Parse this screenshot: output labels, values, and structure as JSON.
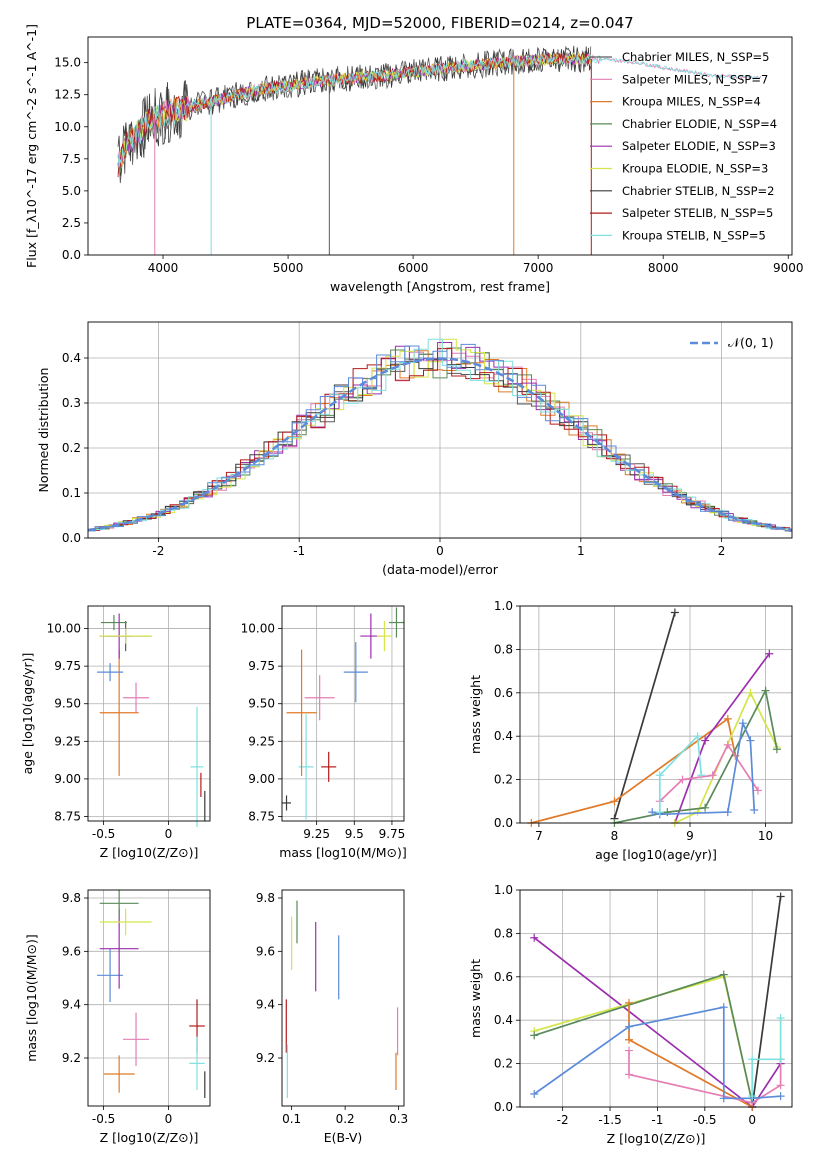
{
  "figure_title": "PLATE=0364, MJD=52000, FIBERID=0214, z=0.047",
  "colors": {
    "series": [
      "#5b5b5b",
      "#e37fb4",
      "#e07a28",
      "#5a8a5a",
      "#9b2fae",
      "#d4e64a",
      "#3a3a3a",
      "#b31b1b",
      "#7fe0e0"
    ],
    "gauss": "#5b8bd9",
    "extra_blue": "#5b8bd9"
  },
  "chart_data": [
    {
      "id": "spectrum",
      "type": "line",
      "xlabel": "wavelength [Angstrom, rest frame]",
      "ylabel": "Flux [f_λ10^-17 erg cm^-2 s^-1 A^-1]",
      "xlim": [
        3400,
        9030
      ],
      "ylim": [
        0,
        17
      ],
      "xticks": [
        4000,
        5000,
        6000,
        7000,
        8000,
        9000
      ],
      "yticks": [
        0.0,
        2.5,
        5.0,
        7.5,
        10.0,
        12.5,
        15.0
      ],
      "legend_position": "right",
      "series": [
        {
          "name": "Chabrier MILES, N_SSP=5"
        },
        {
          "name": "Salpeter MILES, N_SSP=7"
        },
        {
          "name": "Kroupa MILES, N_SSP=4"
        },
        {
          "name": "Chabrier ELODIE, N_SSP=4"
        },
        {
          "name": "Salpeter ELODIE, N_SSP=3"
        },
        {
          "name": "Kroupa ELODIE, N_SSP=3"
        },
        {
          "name": "Chabrier STELIB, N_SSP=2"
        },
        {
          "name": "Salpeter STELIB, N_SSP=5"
        },
        {
          "name": "Kroupa STELIB, N_SSP=5"
        }
      ],
      "continuum": {
        "x": [
          3600,
          3700,
          3800,
          3900,
          4000,
          4200,
          4400,
          4600,
          4800,
          5000,
          5200,
          5500,
          5800,
          6000,
          6300,
          6600,
          6800,
          7000,
          7200,
          7400,
          7600,
          7800,
          8000,
          8200,
          8400,
          8600,
          8800
        ],
        "y": [
          6.0,
          8.5,
          9.5,
          10.5,
          11.0,
          11.5,
          12.0,
          12.5,
          13.0,
          13.2,
          13.5,
          13.8,
          14.0,
          14.3,
          14.6,
          14.9,
          15.1,
          15.2,
          15.3,
          15.3,
          15.2,
          15.0,
          14.6,
          14.3,
          14.0,
          13.9,
          13.8
        ]
      }
    },
    {
      "id": "residual_hist",
      "type": "bar",
      "xlabel": "(data-model)/error",
      "ylabel": "Normed distribution",
      "xlim": [
        -2.5,
        2.5
      ],
      "ylim": [
        0,
        0.48
      ],
      "xticks": [
        -2,
        -1,
        0,
        1,
        2
      ],
      "yticks": [
        0.0,
        0.1,
        0.2,
        0.3,
        0.4
      ],
      "legend": "𝒩(0, 1)",
      "legend_position": "top-right",
      "bin_width": 0.1
    },
    {
      "id": "z_age",
      "type": "scatter",
      "xlabel": "Z [log10(Z/Z⊙)]",
      "ylabel": "age [log10(age/yr)]",
      "xlim": [
        -0.62,
        0.32
      ],
      "ylim": [
        8.72,
        10.15
      ],
      "xticks": [
        -0.5,
        0.0
      ],
      "yticks": [
        8.75,
        9.0,
        9.25,
        9.5,
        9.75,
        10.0
      ],
      "points": [
        {
          "x": -0.33,
          "y": 9.95,
          "xerr": 0.2,
          "yerr": 0.1,
          "color": 0
        },
        {
          "x": -0.25,
          "y": 9.54,
          "xerr": 0.1,
          "yerr": 0.1,
          "color": 1
        },
        {
          "x": -0.38,
          "y": 9.44,
          "xerr": 0.15,
          "yerr": 0.42,
          "color": 2
        },
        {
          "x": -0.42,
          "y": 10.04,
          "xerr": 0.1,
          "yerr": 0.05,
          "color": 3
        },
        {
          "x": -0.38,
          "y": 9.95,
          "xerr": 0.1,
          "yerr": 0.15,
          "color": 4
        },
        {
          "x": -0.33,
          "y": 9.95,
          "xerr": 0.2,
          "yerr": 0.05,
          "color": 5
        },
        {
          "x": 0.28,
          "y": 8.82,
          "xerr": 0.0,
          "yerr": 0.1,
          "color": 6
        },
        {
          "x": 0.25,
          "y": 8.96,
          "xerr": 0.0,
          "yerr": 0.08,
          "color": 7
        },
        {
          "x": 0.22,
          "y": 9.08,
          "xerr": 0.05,
          "yerr": 0.4,
          "color": 8
        },
        {
          "x": -0.45,
          "y": 9.71,
          "xerr": 0.1,
          "yerr": 0.06,
          "color": 9
        }
      ]
    },
    {
      "id": "mass_age",
      "type": "scatter",
      "xlabel": "mass [log10(M/M⊙)]",
      "ylabel": "",
      "xlim": [
        9.02,
        9.83
      ],
      "ylim": [
        8.72,
        10.15
      ],
      "xticks": [
        9.25,
        9.5,
        9.75
      ],
      "yticks": [
        8.75,
        9.0,
        9.25,
        9.5,
        9.75,
        10.0
      ],
      "points": [
        {
          "x": 9.05,
          "y": 8.84,
          "xerr": 0.03,
          "yerr": 0.05,
          "color": 6
        },
        {
          "x": 9.33,
          "y": 9.08,
          "xerr": 0.05,
          "yerr": 0.1,
          "color": 7
        },
        {
          "x": 9.18,
          "y": 9.08,
          "xerr": 0.05,
          "yerr": 0.35,
          "color": 8
        },
        {
          "x": 9.27,
          "y": 9.54,
          "xerr": 0.1,
          "yerr": 0.15,
          "color": 1
        },
        {
          "x": 9.15,
          "y": 9.44,
          "xerr": 0.1,
          "yerr": 0.42,
          "color": 2
        },
        {
          "x": 9.61,
          "y": 9.95,
          "xerr": 0.07,
          "yerr": 0.15,
          "color": 4
        },
        {
          "x": 9.7,
          "y": 9.95,
          "xerr": 0.05,
          "yerr": 0.1,
          "color": 5
        },
        {
          "x": 9.78,
          "y": 10.04,
          "xerr": 0.05,
          "yerr": 0.1,
          "color": 3
        },
        {
          "x": 9.51,
          "y": 9.71,
          "xerr": 0.08,
          "yerr": 0.2,
          "color": 9
        }
      ]
    },
    {
      "id": "age_weight",
      "type": "line",
      "xlabel": "age [log10(age/yr)]",
      "ylabel": "mass weight",
      "xlim": [
        6.75,
        10.35
      ],
      "ylim": [
        0,
        1.0
      ],
      "xticks": [
        7,
        8,
        9,
        10
      ],
      "yticks": [
        0.0,
        0.2,
        0.4,
        0.6,
        0.8,
        1.0
      ],
      "series": [
        {
          "color": 6,
          "x": [
            8.0,
            8.8
          ],
          "y": [
            0.02,
            0.97
          ]
        },
        {
          "color": 2,
          "x": [
            6.9,
            8.0,
            9.5,
            9.6
          ],
          "y": [
            0.0,
            0.1,
            0.48,
            0.31
          ]
        },
        {
          "color": 4,
          "x": [
            8.8,
            9.2,
            10.05
          ],
          "y": [
            0.0,
            0.38,
            0.78
          ]
        },
        {
          "color": 5,
          "x": [
            8.8,
            9.1,
            9.8,
            10.15
          ],
          "y": [
            0.0,
            0.05,
            0.6,
            0.35
          ]
        },
        {
          "color": 3,
          "x": [
            8.0,
            8.7,
            9.2,
            10.0,
            10.15
          ],
          "y": [
            0.0,
            0.05,
            0.07,
            0.61,
            0.34
          ]
        },
        {
          "color": 1,
          "x": [
            8.6,
            8.9,
            9.3,
            9.5,
            9.9
          ],
          "y": [
            0.1,
            0.2,
            0.22,
            0.36,
            0.15
          ]
        },
        {
          "color": 9,
          "x": [
            8.5,
            8.6,
            9.5,
            9.7,
            9.8,
            9.85
          ],
          "y": [
            0.05,
            0.04,
            0.05,
            0.46,
            0.38,
            0.06
          ]
        },
        {
          "color": 8,
          "x": [
            8.6,
            8.6,
            9.1,
            9.15
          ],
          "y": [
            0.05,
            0.22,
            0.4,
            0.22
          ]
        }
      ]
    },
    {
      "id": "z_mass",
      "type": "scatter",
      "xlabel": "Z [log10(Z/Z⊙)]",
      "ylabel": "mass [log10(M/M⊙)]",
      "xlim": [
        -0.62,
        0.32
      ],
      "ylim": [
        9.02,
        9.83
      ],
      "xticks": [
        -0.5,
        0.0
      ],
      "yticks": [
        9.2,
        9.4,
        9.6,
        9.8
      ],
      "points": [
        {
          "x": -0.45,
          "y": 9.51,
          "xerr": 0.1,
          "yerr": 0.1,
          "color": 9
        },
        {
          "x": -0.38,
          "y": 9.61,
          "xerr": 0.15,
          "yerr": 0.15,
          "color": 4
        },
        {
          "x": -0.33,
          "y": 9.71,
          "xerr": 0.2,
          "yerr": 0.05,
          "color": 5
        },
        {
          "x": -0.38,
          "y": 9.78,
          "xerr": 0.15,
          "yerr": 0.05,
          "color": 3
        },
        {
          "x": -0.25,
          "y": 9.27,
          "xerr": 0.1,
          "yerr": 0.1,
          "color": 1
        },
        {
          "x": -0.38,
          "y": 9.14,
          "xerr": 0.12,
          "yerr": 0.07,
          "color": 2
        },
        {
          "x": 0.22,
          "y": 9.32,
          "xerr": 0.06,
          "yerr": 0.1,
          "color": 7
        },
        {
          "x": 0.22,
          "y": 9.18,
          "xerr": 0.06,
          "yerr": 0.1,
          "color": 8
        },
        {
          "x": 0.28,
          "y": 9.1,
          "xerr": 0.0,
          "yerr": 0.05,
          "color": 6
        }
      ]
    },
    {
      "id": "ebv_mass",
      "type": "scatter",
      "xlabel": "E(B-V)",
      "ylabel": "",
      "xlim": [
        0.082,
        0.31
      ],
      "ylim": [
        9.02,
        9.83
      ],
      "xticks": [
        0.1,
        0.2,
        0.3
      ],
      "yticks": [
        9.2,
        9.4,
        9.6,
        9.8
      ],
      "points": [
        {
          "x": 0.09,
          "y": 9.32,
          "yerr": 0.1,
          "color": 7
        },
        {
          "x": 0.092,
          "y": 9.15,
          "yerr": 0.1,
          "color": 8
        },
        {
          "x": 0.1,
          "y": 9.63,
          "yerr": 0.1,
          "color": 5
        },
        {
          "x": 0.11,
          "y": 9.71,
          "yerr": 0.08,
          "color": 3
        },
        {
          "x": 0.145,
          "y": 9.58,
          "yerr": 0.13,
          "color": 4
        },
        {
          "x": 0.188,
          "y": 9.54,
          "yerr": 0.12,
          "color": 9
        },
        {
          "x": 0.298,
          "y": 9.3,
          "yerr": 0.09,
          "color": 1
        },
        {
          "x": 0.295,
          "y": 9.15,
          "yerr": 0.07,
          "color": 2
        }
      ]
    },
    {
      "id": "z_weight",
      "type": "line",
      "xlabel": "Z [log10(Z/Z⊙)]",
      "ylabel": "mass weight",
      "xlim": [
        -2.45,
        0.42
      ],
      "ylim": [
        0,
        1.0
      ],
      "xticks": [
        -2.0,
        -1.5,
        -1.0,
        -0.5,
        0.0
      ],
      "yticks": [
        0.0,
        0.2,
        0.4,
        0.6,
        0.8,
        1.0
      ],
      "series": [
        {
          "color": 6,
          "x": [
            0.0,
            0.3
          ],
          "y": [
            0.0,
            0.97
          ]
        },
        {
          "color": 4,
          "x": [
            -2.3,
            0.0,
            0.3
          ],
          "y": [
            0.78,
            0.0,
            0.2
          ]
        },
        {
          "color": 5,
          "x": [
            -2.3,
            -0.3,
            0.0
          ],
          "y": [
            0.35,
            0.6,
            0.02
          ]
        },
        {
          "color": 3,
          "x": [
            -2.3,
            -0.3,
            0.0
          ],
          "y": [
            0.33,
            0.61,
            0.02
          ]
        },
        {
          "color": 2,
          "x": [
            -1.3,
            -1.3,
            0.0
          ],
          "y": [
            0.48,
            0.31,
            0.0
          ]
        },
        {
          "color": 1,
          "x": [
            -1.3,
            -1.3,
            0.0,
            0.3,
            0.3
          ],
          "y": [
            0.26,
            0.15,
            0.02,
            0.1,
            0.22
          ]
        },
        {
          "color": 9,
          "x": [
            -2.3,
            -1.3,
            -0.3,
            -0.3,
            0.0,
            0.3
          ],
          "y": [
            0.06,
            0.37,
            0.46,
            0.04,
            0.04,
            0.05
          ]
        },
        {
          "color": 8,
          "x": [
            0.0,
            0.0,
            0.3,
            0.3
          ],
          "y": [
            0.05,
            0.22,
            0.22,
            0.41
          ]
        }
      ]
    }
  ]
}
